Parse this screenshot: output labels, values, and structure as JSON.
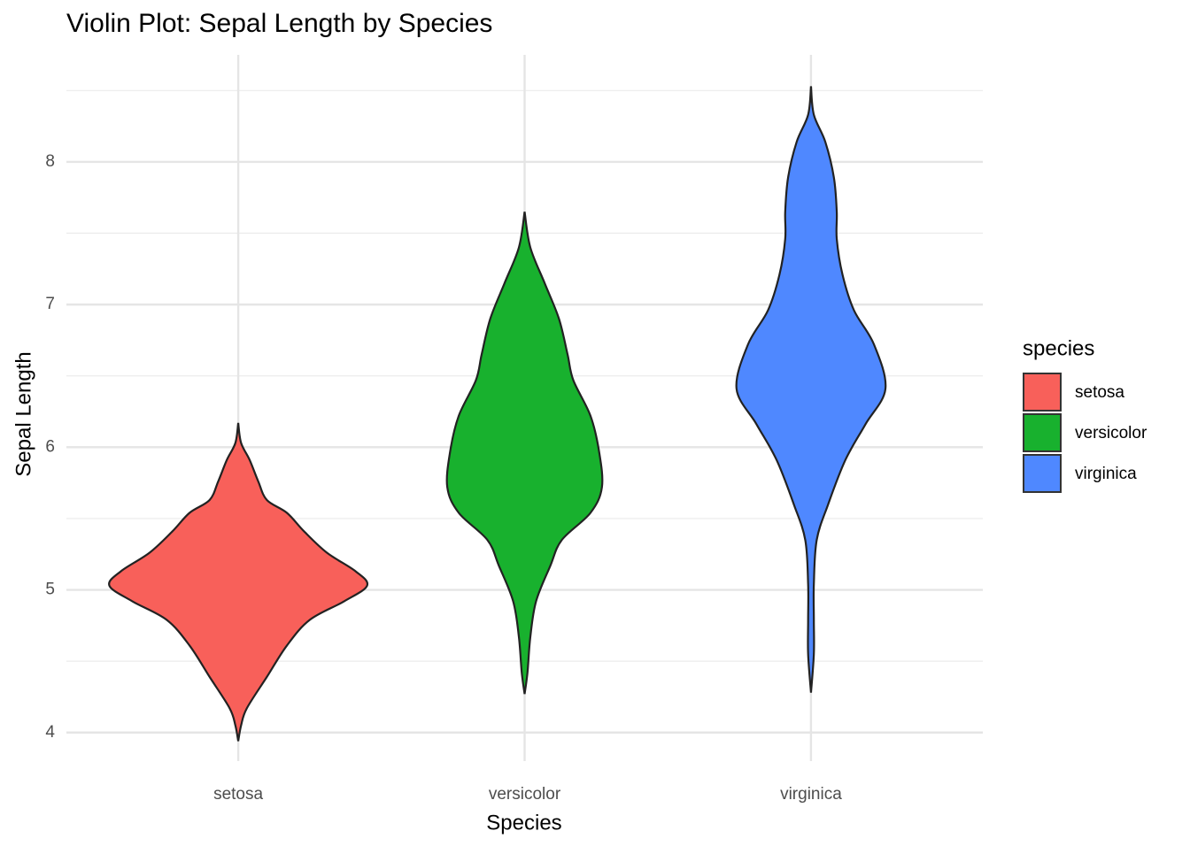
{
  "chart_data": {
    "type": "violin",
    "title": "Violin Plot: Sepal Length by Species",
    "x_label": "Species",
    "y_label": "Sepal Length",
    "legend_title": "species",
    "legend": "right",
    "categories": [
      "setosa",
      "versicolor",
      "virginica"
    ],
    "ylim": [
      3.8,
      8.75
    ],
    "yticks": [
      4,
      5,
      6,
      7,
      8
    ],
    "minor_yticks": [
      4.5,
      5.5,
      6.5,
      7.5,
      8.5
    ],
    "grid": true,
    "series": [
      {
        "name": "setosa",
        "color": "#f8605a",
        "y": [
          6.17,
          6.03,
          5.91,
          5.76,
          5.63,
          5.54,
          5.41,
          5.26,
          5.13,
          5.03,
          4.92,
          4.79,
          4.61,
          4.39,
          4.17,
          4.05,
          3.94
        ],
        "widths": [
          0,
          0.01,
          0.04,
          0.07,
          0.1,
          0.17,
          0.23,
          0.31,
          0.41,
          0.45,
          0.37,
          0.25,
          0.17,
          0.1,
          0.03,
          0.01,
          0
        ]
      },
      {
        "name": "versicolor",
        "color": "#18b12e",
        "y": [
          7.65,
          7.4,
          7.15,
          6.9,
          6.65,
          6.47,
          6.22,
          5.97,
          5.72,
          5.54,
          5.35,
          5.17,
          4.92,
          4.67,
          4.42,
          4.27
        ],
        "widths": [
          0,
          0.02,
          0.07,
          0.12,
          0.15,
          0.17,
          0.23,
          0.26,
          0.27,
          0.23,
          0.13,
          0.09,
          0.04,
          0.02,
          0.01,
          0
        ]
      },
      {
        "name": "virginica",
        "color": "#4f88ff",
        "y": [
          8.53,
          8.33,
          8.14,
          7.89,
          7.65,
          7.46,
          7.21,
          6.96,
          6.72,
          6.41,
          6.16,
          5.91,
          5.6,
          5.35,
          5.04,
          4.79,
          4.55,
          4.28
        ],
        "widths": [
          0,
          0.01,
          0.05,
          0.08,
          0.09,
          0.09,
          0.11,
          0.15,
          0.22,
          0.26,
          0.19,
          0.12,
          0.06,
          0.02,
          0.01,
          0.01,
          0.01,
          0
        ]
      }
    ]
  }
}
